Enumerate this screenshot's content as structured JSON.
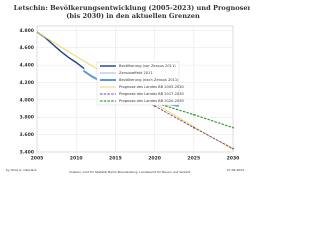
{
  "chart_data": {
    "type": "line",
    "title": [
      "Letschin:  Bevölkerungsentwicklung (2005-2023) und Prognosen",
      "(bis 2030) in den aktuellen Grenzen"
    ],
    "footer": {
      "author": "by Hans G. Oberlack",
      "source": "Quellen: Amt für Statistik Berlin-Brandenburg, Landesamt für Bauen und Verkehr",
      "date": "07.06.2024"
    },
    "xlim": [
      2005,
      2030
    ],
    "xticks": [
      2005,
      2010,
      2015,
      2020,
      2025,
      2030
    ],
    "ylim": [
      3400,
      4850
    ],
    "yticks": [
      {
        "value": 3400,
        "label": "3.400"
      },
      {
        "value": 3600,
        "label": "3.600"
      },
      {
        "value": 3800,
        "label": "3.800"
      },
      {
        "value": 4000,
        "label": "4.000"
      },
      {
        "value": 4200,
        "label": "4.200"
      },
      {
        "value": 4400,
        "label": "4.400"
      },
      {
        "value": 4600,
        "label": "4.600"
      },
      {
        "value": 4800,
        "label": "4.800"
      }
    ],
    "grid": true,
    "series": [
      {
        "name": "Bevölkerung (vor Zensus 2011)",
        "color": "#1f3f8f",
        "width": 1.4,
        "dash": false,
        "markers": false,
        "x": [
          2005,
          2006,
          2007,
          2008,
          2009,
          2010,
          2011
        ],
        "values": [
          4780,
          4720,
          4640,
          4560,
          4490,
          4430,
          4360
        ]
      },
      {
        "name": "Zensuseffekt 2011",
        "color": "#9fb8d8",
        "width": 1,
        "dash": false,
        "markers": false,
        "x": [
          2011,
          2011
        ],
        "values": [
          4360,
          4330
        ]
      },
      {
        "name": "Bevölkerung (nach Zensus 2011)",
        "color": "#5b9bd5",
        "width": 2,
        "dash": false,
        "markers": true,
        "x": [
          2011,
          2012,
          2013,
          2014,
          2015,
          2016,
          2017,
          2018,
          2019,
          2020,
          2021,
          2022,
          2023
        ],
        "values": [
          4330,
          4270,
          4220,
          4170,
          4120,
          4080,
          4060,
          4030,
          4000,
          3970,
          3950,
          3950,
          3930
        ]
      },
      {
        "name": "Prognose des Landes BB 2005-2030",
        "color": "#e6d84a",
        "width": 0.9,
        "dash": false,
        "markers": false,
        "x": [
          2005,
          2010,
          2015,
          2020,
          2025,
          2030
        ],
        "values": [
          4780,
          4500,
          4230,
          3960,
          3690,
          3430
        ]
      },
      {
        "name": "Prognose des Landes BB 2017-2030",
        "color": "#7b3fa0",
        "width": 0.9,
        "dash": true,
        "markers": true,
        "x": [
          2017,
          2020,
          2025,
          2030
        ],
        "values": [
          4060,
          3930,
          3680,
          3440
        ]
      },
      {
        "name": "Prognose des Landes BB 2020-2030",
        "color": "#3a9a3a",
        "width": 1.2,
        "dash": true,
        "markers": true,
        "x": [
          2020,
          2025,
          2030
        ],
        "values": [
          3970,
          3830,
          3680
        ]
      }
    ]
  }
}
